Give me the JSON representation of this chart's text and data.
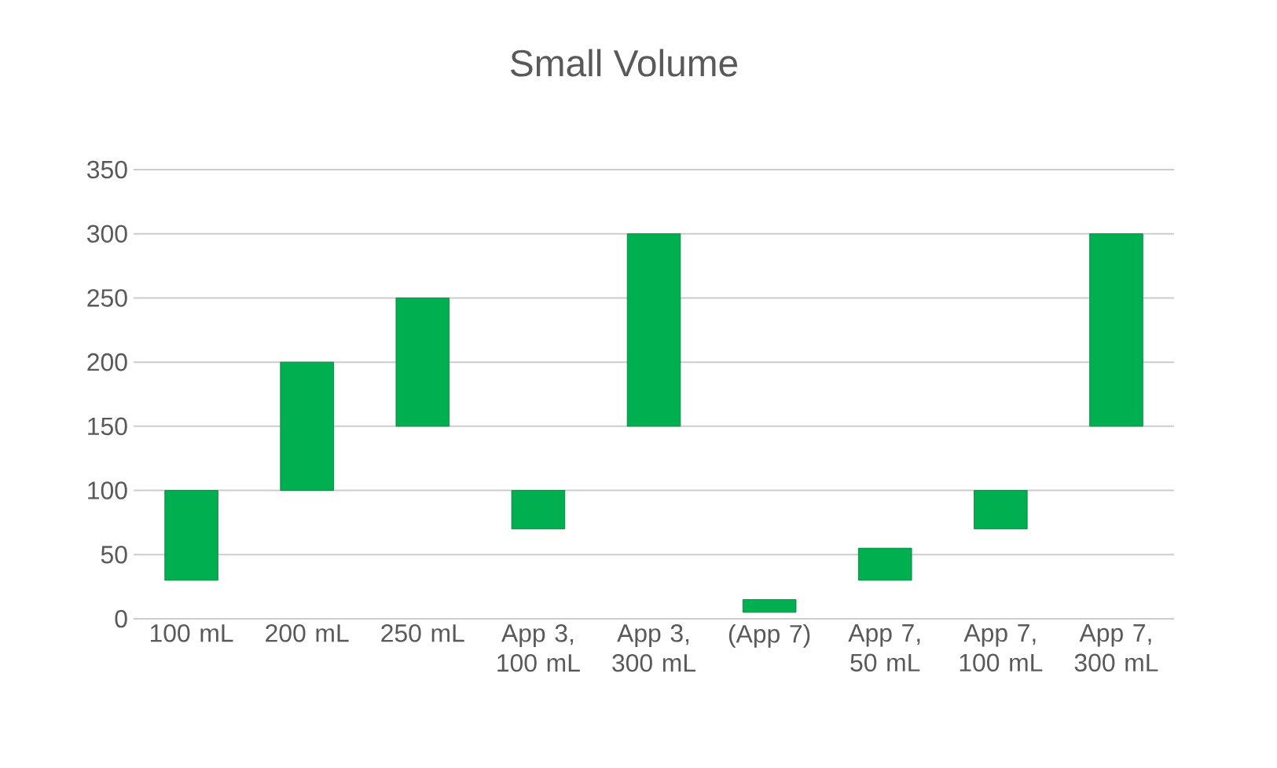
{
  "chart_data": {
    "type": "bar",
    "title": "Small Volume",
    "categories": [
      "100 mL",
      "200 mL",
      "250 mL",
      "App 3, 100 mL",
      "App 3, 300 mL",
      "(App 7)",
      "App 7, 50 mL",
      "App 7, 100 mL",
      "App 7, 300 mL"
    ],
    "values": [
      70,
      100,
      100,
      30,
      150,
      10,
      25,
      30,
      150
    ],
    "base": [
      30,
      100,
      150,
      70,
      150,
      5,
      30,
      70,
      150
    ],
    "color": "#00b050",
    "ylim": [
      0,
      350
    ],
    "yticks": [
      0,
      50,
      100,
      150,
      200,
      250,
      300,
      350
    ],
    "grid": "y"
  }
}
